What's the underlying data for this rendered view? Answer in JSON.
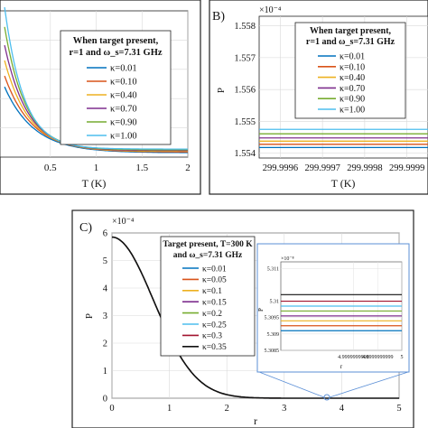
{
  "panels": [
    {
      "id": "A",
      "label": "",
      "legend_title_lines": [
        "When target present,",
        "r=1 and ω_s=7.31 GHz"
      ],
      "chart_data": {
        "type": "line",
        "xlabel": "T (K)",
        "ylabel": "",
        "multiplier": "",
        "xlim": [
          -0.05,
          2.0
        ],
        "ylim": [
          0,
          1
        ],
        "x_ticks": [
          "0.5",
          "1",
          "1.5",
          "2"
        ],
        "x_tick_values": [
          0.5,
          1.0,
          1.5,
          2.0
        ],
        "y_ticks": [],
        "grid": true,
        "legend_placement": "top-right",
        "series": [
          {
            "name": "κ=0.01",
            "color": "#0072BD",
            "peak": 0.45,
            "decay": 0.32,
            "floor": 0.03
          },
          {
            "name": "κ=0.10",
            "color": "#D95319",
            "peak": 0.52,
            "decay": 0.3,
            "floor": 0.035
          },
          {
            "name": "κ=0.40",
            "color": "#EDB120",
            "peak": 0.62,
            "decay": 0.27,
            "floor": 0.04
          },
          {
            "name": "κ=0.70",
            "color": "#7E2F8E",
            "peak": 0.72,
            "decay": 0.25,
            "floor": 0.045
          },
          {
            "name": "κ=0.90",
            "color": "#77AC30",
            "peak": 0.84,
            "decay": 0.23,
            "floor": 0.05
          },
          {
            "name": "κ=1.00",
            "color": "#4DBEEE",
            "peak": 0.97,
            "decay": 0.21,
            "floor": 0.055
          }
        ]
      }
    },
    {
      "id": "B",
      "label": "B)",
      "legend_title_lines": [
        "When target present,",
        "r=1 and ω_s=7.31 GHz"
      ],
      "chart_data": {
        "type": "line",
        "xlabel": "T (K)",
        "ylabel": "P",
        "multiplier": "×10⁻⁴",
        "xlim": [
          299.99955,
          299.99995
        ],
        "ylim": [
          1.55385,
          1.5583
        ],
        "x_ticks": [
          "299.9996",
          "299.9997",
          "299.9998",
          "299.9999"
        ],
        "x_tick_values": [
          299.9996,
          299.9997,
          299.9998,
          299.9999
        ],
        "y_ticks": [
          "1.558",
          "1.557",
          "1.556",
          "1.555",
          "1.554"
        ],
        "y_tick_values": [
          1.558,
          1.557,
          1.556,
          1.555,
          1.554
        ],
        "grid": true,
        "legend_placement": "top-right",
        "series": [
          {
            "name": "κ=0.01",
            "color": "#0072BD",
            "value": 1.55418
          },
          {
            "name": "κ=0.10",
            "color": "#D95319",
            "value": 1.55428
          },
          {
            "name": "κ=0.40",
            "color": "#EDB120",
            "value": 1.55438
          },
          {
            "name": "κ=0.70",
            "color": "#7E2F8E",
            "value": 1.55448
          },
          {
            "name": "κ=0.90",
            "color": "#77AC30",
            "value": 1.55461
          },
          {
            "name": "κ=1.00",
            "color": "#4DBEEE",
            "value": 1.55475
          }
        ]
      }
    },
    {
      "id": "C",
      "label": "C)",
      "legend_title_lines": [
        "Target present, T=300 K",
        "and ω_s=7.31 GHz"
      ],
      "chart_data": {
        "type": "line",
        "xlabel": "r",
        "ylabel": "P",
        "multiplier": "×10⁻⁴",
        "xlim": [
          0,
          5
        ],
        "ylim": [
          0,
          6
        ],
        "x_ticks": [
          "0",
          "1",
          "2",
          "3",
          "4",
          "5"
        ],
        "x_tick_values": [
          0,
          1,
          2,
          3,
          4,
          5
        ],
        "y_ticks": [
          "6",
          "5",
          "4",
          "3",
          "2",
          "1",
          "0"
        ],
        "y_tick_values": [
          6,
          5,
          4,
          3,
          2,
          1,
          0
        ],
        "grid": true,
        "legend_placement": "top-right",
        "curve_peak": 5.85,
        "series": [
          {
            "name": "κ=0.01",
            "color": "#0072BD"
          },
          {
            "name": "κ=0.05",
            "color": "#D95319"
          },
          {
            "name": "κ=0.1",
            "color": "#EDB120"
          },
          {
            "name": "κ=0.15",
            "color": "#7E2F8E"
          },
          {
            "name": "κ=0.2",
            "color": "#77AC30"
          },
          {
            "name": "κ=0.25",
            "color": "#4DBEEE"
          },
          {
            "name": "κ=0.3",
            "color": "#A2142F"
          },
          {
            "name": "κ=0.35",
            "color": "#111111"
          }
        ],
        "inset": {
          "multiplier": "×10⁻⁸",
          "ylabel": "P",
          "xlabel": "r",
          "xlim": [
            4.9999999995,
            5.0
          ],
          "ylim": [
            5.3085,
            5.3112
          ],
          "y_ticks": [
            "5.311",
            "5.31",
            "5.3095",
            "5.309",
            "5.3085"
          ],
          "y_tick_values": [
            5.311,
            5.31,
            5.3095,
            5.309,
            5.3085
          ],
          "x_ticks": [
            "4.9999999998",
            "4.9999999999",
            "5"
          ],
          "x_tick_values": [
            4.9999999998,
            4.9999999999,
            5.0
          ],
          "values": [
            5.3091,
            5.30925,
            5.3094,
            5.30955,
            5.3097,
            5.30985,
            5.31,
            5.3102
          ]
        }
      }
    }
  ]
}
